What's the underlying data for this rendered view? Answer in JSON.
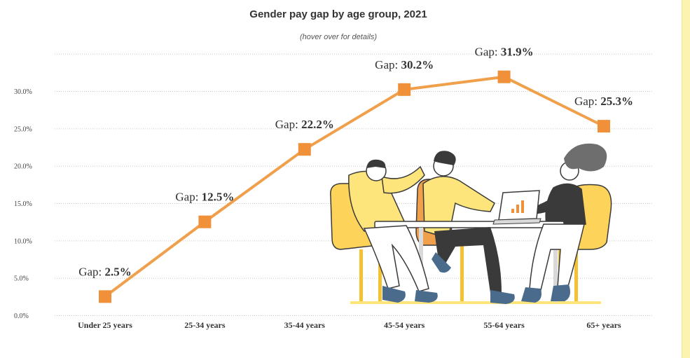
{
  "title": "Gender pay gap by age group, 2021",
  "subtitle": "(hover over for details)",
  "label_prefix": "Gap: ",
  "illustration": "three-people-at-desk-with-laptop-illustration",
  "colors": {
    "line": "#f0a04b",
    "marker": "#f0913a",
    "grid": "#c8c8c8",
    "side_strip": "#fdf3b0",
    "people_yellow": "#fde57c",
    "chair_yellow": "#fdd35a",
    "dark": "#3a3a3a",
    "jeans": "#4a6b8c"
  },
  "chart_data": {
    "type": "line",
    "title": "Gender pay gap by age group, 2021",
    "subtitle": "(hover over for details)",
    "categories": [
      "Under 25 years",
      "25-34 years",
      "35-44 years",
      "45-54 years",
      "55-64 years",
      "65+ years"
    ],
    "values": [
      2.5,
      12.5,
      22.2,
      30.2,
      31.9,
      25.3
    ],
    "data_labels": [
      "2.5%",
      "12.5%",
      "22.2%",
      "30.2%",
      "31.9%",
      "25.3%"
    ],
    "y_ticks": [
      0,
      5,
      10,
      15,
      20,
      25,
      30
    ],
    "y_tick_labels": [
      "0.0%",
      "5.0%",
      "10.0%",
      "15.0%",
      "20.0%",
      "25.0%",
      "30.0%"
    ],
    "ylim": [
      0,
      35
    ],
    "grid": true,
    "legend": "none"
  }
}
